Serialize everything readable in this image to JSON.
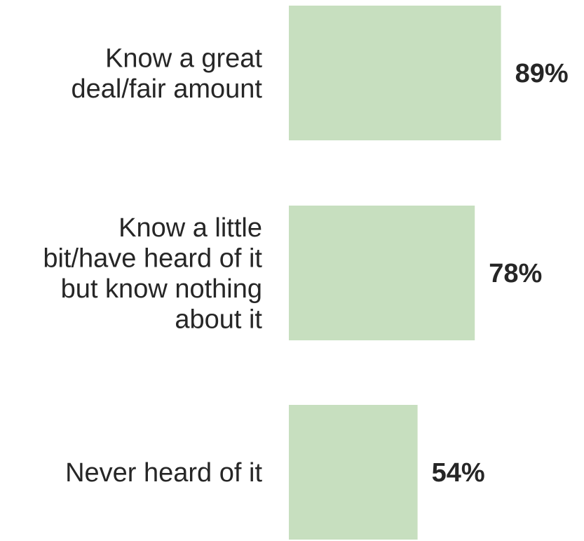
{
  "chart_data": {
    "type": "bar",
    "orientation": "horizontal",
    "categories": [
      "Know a great deal/fair amount",
      "Know a little bit/have heard of it but know nothing about it",
      "Never heard of it"
    ],
    "category_lines": [
      [
        "Know a great",
        "deal/fair amount"
      ],
      [
        "Know a little",
        "bit/have heard of it",
        "but know nothing",
        "about it"
      ],
      [
        "Never heard of it"
      ]
    ],
    "values": [
      89,
      78,
      54
    ],
    "value_labels": [
      "89%",
      "78%",
      "54%"
    ],
    "xlim": [
      0,
      100
    ],
    "bar_color": "#c7dfbf",
    "text_color": "#262626",
    "grid": false,
    "legend": "none"
  }
}
